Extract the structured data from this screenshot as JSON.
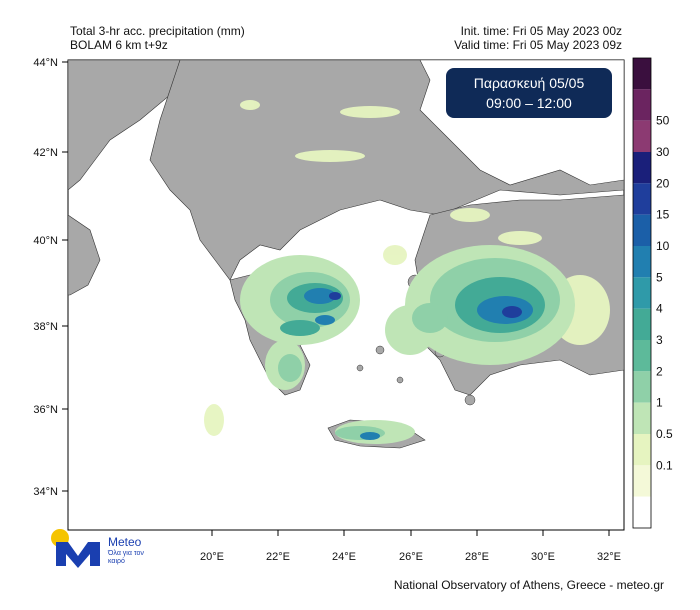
{
  "header": {
    "title_line1": "Total 3-hr acc. precipitation (mm)",
    "title_line2": "BOLAM 6 km t+9z",
    "init_time": "Init. time: Fri 05 May 2023 00z",
    "valid_time": "Valid time: Fri 05 May 2023 09z"
  },
  "badge": {
    "day_label": "Παρασκευή  05/05",
    "time_range": "09:00 – 12:00"
  },
  "axes": {
    "lat_ticks": [
      "44°N",
      "42°N",
      "40°N",
      "38°N",
      "36°N",
      "34°N"
    ],
    "lon_ticks": [
      "20°E",
      "22°E",
      "24°E",
      "26°E",
      "28°E",
      "30°E",
      "32°E"
    ]
  },
  "colorbar": {
    "labels": [
      "50",
      "30",
      "20",
      "15",
      "10",
      "5",
      "4",
      "3",
      "2",
      "1",
      "0.5",
      "0.1"
    ],
    "colors": [
      "#3a0f3e",
      "#6b2460",
      "#8c3a72",
      "#1a1f7a",
      "#1f3e9c",
      "#1b5fa8",
      "#217fb0",
      "#2f9aa9",
      "#43aa96",
      "#5dba9a",
      "#8fd0a8",
      "#bfe5b6",
      "#e6f4c0",
      "#f4f9d8",
      "#ffffff"
    ]
  },
  "logo": {
    "name": "Meteo",
    "tagline": "Όλα για τον καιρό"
  },
  "footer": {
    "credit": "National Observatory of Athens, Greece - meteo.gr"
  },
  "palette": {
    "sea": "#ffffff",
    "land": "#a8a8a8",
    "light_rain": "#e6f4c0",
    "moderate_rain": "#8fd0a8",
    "heavy_rain": "#217fb0"
  }
}
